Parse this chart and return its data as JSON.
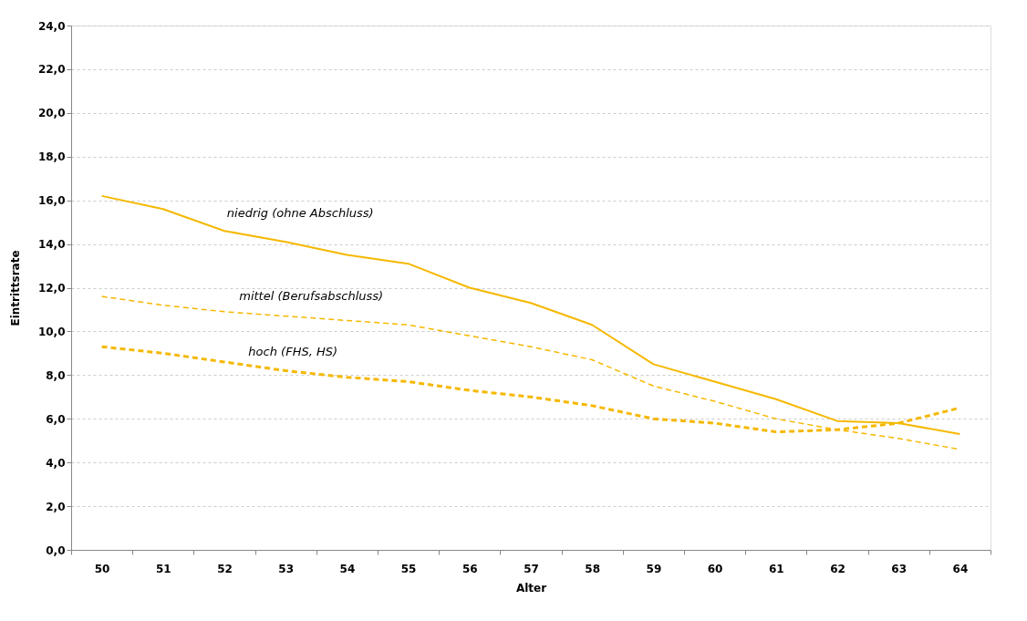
{
  "chart_data": {
    "type": "line",
    "xlabel": "Alter",
    "ylabel": "Eintrittsrate",
    "categories": [
      "50",
      "51",
      "52",
      "53",
      "54",
      "55",
      "56",
      "57",
      "58",
      "59",
      "60",
      "61",
      "62",
      "63",
      "64"
    ],
    "series": [
      {
        "name": "niedrig (ohne Abschluss)",
        "color": "#f5b800",
        "line_style": "solid",
        "values": [
          16.2,
          15.6,
          14.6,
          14.1,
          13.5,
          13.1,
          12.0,
          11.3,
          10.3,
          8.5,
          7.7,
          6.9,
          5.9,
          5.8,
          5.3
        ]
      },
      {
        "name": "mittel (Berufsabschluss)",
        "color": "#f5b800",
        "line_style": "dashed",
        "values": [
          11.6,
          11.2,
          10.9,
          10.7,
          10.5,
          10.3,
          9.8,
          9.3,
          8.7,
          7.5,
          6.8,
          6.0,
          5.5,
          5.1,
          4.6
        ]
      },
      {
        "name": "hoch (FHS, HS)",
        "color": "#f5b800",
        "line_style": "dashed",
        "values": [
          9.3,
          9.0,
          8.6,
          8.2,
          7.9,
          7.7,
          7.3,
          7.0,
          6.6,
          6.0,
          5.8,
          5.4,
          5.5,
          5.8,
          6.5
        ]
      }
    ],
    "ylim": [
      0,
      24
    ],
    "yticks": [
      {
        "value": 0,
        "label": "0,0"
      },
      {
        "value": 2,
        "label": "2,0"
      },
      {
        "value": 4,
        "label": "4,0"
      },
      {
        "value": 6,
        "label": "6,0"
      },
      {
        "value": 8,
        "label": "8,0"
      },
      {
        "value": 10,
        "label": "10,0"
      },
      {
        "value": 12,
        "label": "12,0"
      },
      {
        "value": 14,
        "label": "14,0"
      },
      {
        "value": 16,
        "label": "16,0"
      },
      {
        "value": 18,
        "label": "18,0"
      },
      {
        "value": 20,
        "label": "20,0"
      },
      {
        "value": 22,
        "label": "22,0"
      },
      {
        "value": 24,
        "label": "24,0"
      }
    ],
    "grid": "y",
    "marker": "none"
  }
}
